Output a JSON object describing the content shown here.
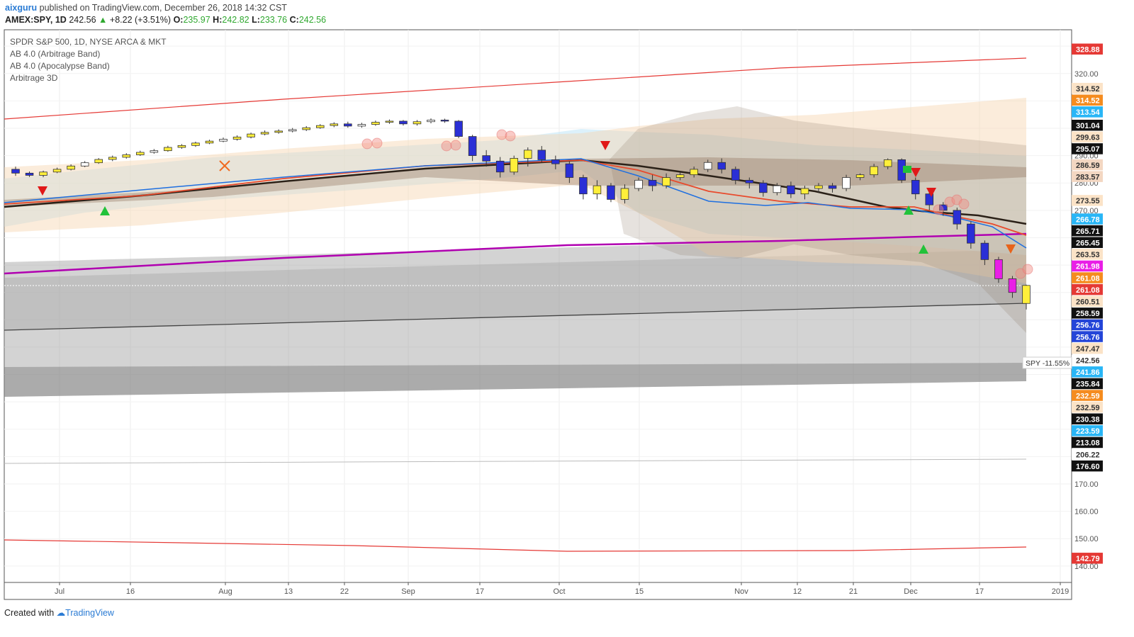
{
  "header": {
    "user": "aixguru",
    "published_text": "published on TradingView.com, December 26, 2018 14:32 CST",
    "symbol": "AMEX:SPY, 1D",
    "last": "242.56",
    "change": "+8.22 (+3.51%)",
    "open_label": "O:",
    "open": "235.97",
    "high_label": "H:",
    "high": "242.82",
    "low_label": "L:",
    "low": "233.76",
    "close_label": "C:",
    "close": "242.56"
  },
  "legend": [
    "SPDR S&P 500, 1D, NYSE ARCA & MKT",
    "AB 4.0 (Arbitrage Band)",
    "AB 4.0 (Apocalypse Band)",
    "Arbitrage 3D"
  ],
  "footer": {
    "created_with": "Created with",
    "brand": "TradingView"
  },
  "chart_data": {
    "type": "candlestick",
    "ylim": [
      134,
      336
    ],
    "y_ticks": [
      140,
      150,
      160,
      170,
      270,
      280,
      290,
      320
    ],
    "x_labels": [
      "Jul",
      "16",
      "Aug",
      "13",
      "22",
      "Sep",
      "17",
      "Oct",
      "15",
      "Nov",
      "12",
      "21",
      "Dec",
      "17",
      "2019"
    ],
    "price_labels": [
      {
        "value": 328.88,
        "text": "328.88",
        "bg": "#e53935",
        "fg": "#ffffff"
      },
      {
        "value": 314.52,
        "text": "314.52",
        "bg": "#fbe3c7",
        "fg": "#333333"
      },
      {
        "value": 314.52,
        "text": "314.52",
        "bg": "#f58c1f",
        "fg": "#ffffff"
      },
      {
        "value": 313.54,
        "text": "313.54",
        "bg": "#29b6f6",
        "fg": "#ffffff"
      },
      {
        "value": 301.04,
        "text": "301.04",
        "bg": "#111111",
        "fg": "#ffffff"
      },
      {
        "value": 299.63,
        "text": "299.63",
        "bg": "#fbe3c7",
        "fg": "#333333"
      },
      {
        "value": 295.07,
        "text": "295.07",
        "bg": "#111111",
        "fg": "#ffffff"
      },
      {
        "value": 286.59,
        "text": "286.59",
        "bg": "#f3d7c2",
        "fg": "#333333"
      },
      {
        "value": 283.57,
        "text": "283.57",
        "bg": "#f3d7c2",
        "fg": "#333333"
      },
      {
        "value": 273.55,
        "text": "273.55",
        "bg": "#fbe3c7",
        "fg": "#333333"
      },
      {
        "value": 266.78,
        "text": "266.78",
        "bg": "#29b6f6",
        "fg": "#ffffff"
      },
      {
        "value": 265.71,
        "text": "265.71",
        "bg": "#111111",
        "fg": "#ffffff"
      },
      {
        "value": 265.45,
        "text": "265.45",
        "bg": "#111111",
        "fg": "#ffffff"
      },
      {
        "value": 263.53,
        "text": "263.53",
        "bg": "#fbe3c7",
        "fg": "#333333"
      },
      {
        "value": 261.98,
        "text": "261.98",
        "bg": "#e91ee6",
        "fg": "#ffffff"
      },
      {
        "value": 261.08,
        "text": "261.08",
        "bg": "#f58c1f",
        "fg": "#ffffff"
      },
      {
        "value": 261.08,
        "text": "261.08",
        "bg": "#e53935",
        "fg": "#ffffff"
      },
      {
        "value": 260.51,
        "text": "260.51",
        "bg": "#fbe3c7",
        "fg": "#333333"
      },
      {
        "value": 258.59,
        "text": "258.59",
        "bg": "#111111",
        "fg": "#ffffff"
      },
      {
        "value": 256.76,
        "text": "256.76",
        "bg": "#2445d8",
        "fg": "#ffffff"
      },
      {
        "value": 256.76,
        "text": "256.76",
        "bg": "#2445d8",
        "fg": "#ffffff"
      },
      {
        "value": 247.47,
        "text": "247.47",
        "bg": "#fbe3c7",
        "fg": "#333333"
      },
      {
        "value": 242.56,
        "text": "242.56",
        "bg": "#ffffff",
        "fg": "#333333"
      },
      {
        "value": 241.86,
        "text": "241.86",
        "bg": "#29b6f6",
        "fg": "#ffffff"
      },
      {
        "value": 235.84,
        "text": "235.84",
        "bg": "#111111",
        "fg": "#ffffff"
      },
      {
        "value": 232.59,
        "text": "232.59",
        "bg": "#f58c1f",
        "fg": "#ffffff"
      },
      {
        "value": 232.59,
        "text": "232.59",
        "bg": "#fbe3c7",
        "fg": "#333333"
      },
      {
        "value": 230.38,
        "text": "230.38",
        "bg": "#111111",
        "fg": "#ffffff"
      },
      {
        "value": 223.59,
        "text": "223.59",
        "bg": "#29b6f6",
        "fg": "#ffffff"
      },
      {
        "value": 213.08,
        "text": "213.08",
        "bg": "#111111",
        "fg": "#ffffff"
      },
      {
        "value": 206.22,
        "text": "206.22",
        "bg": "#ffffff",
        "fg": "#333333"
      },
      {
        "value": 176.6,
        "text": "176.60",
        "bg": "#111111",
        "fg": "#ffffff"
      },
      {
        "value": 142.79,
        "text": "142.79",
        "bg": "#e53935",
        "fg": "#ffffff"
      }
    ],
    "spy_label": "SPY -11.55%",
    "spy_value": "242.56",
    "colors": {
      "bull": "#ffef3a",
      "bear": "#2a2fd6",
      "bull_plain": "#ffffff",
      "fast_ma": "#1e6fe0",
      "mid_ma": "#e84a2c",
      "slow_ma": "#2b2118",
      "apocalypse": "#b000b0",
      "outer_band": "#e53935",
      "gray_band": "#9e9e9e",
      "peach_band": "#f7d5b0",
      "sky_band": "#bfe6f7"
    }
  }
}
